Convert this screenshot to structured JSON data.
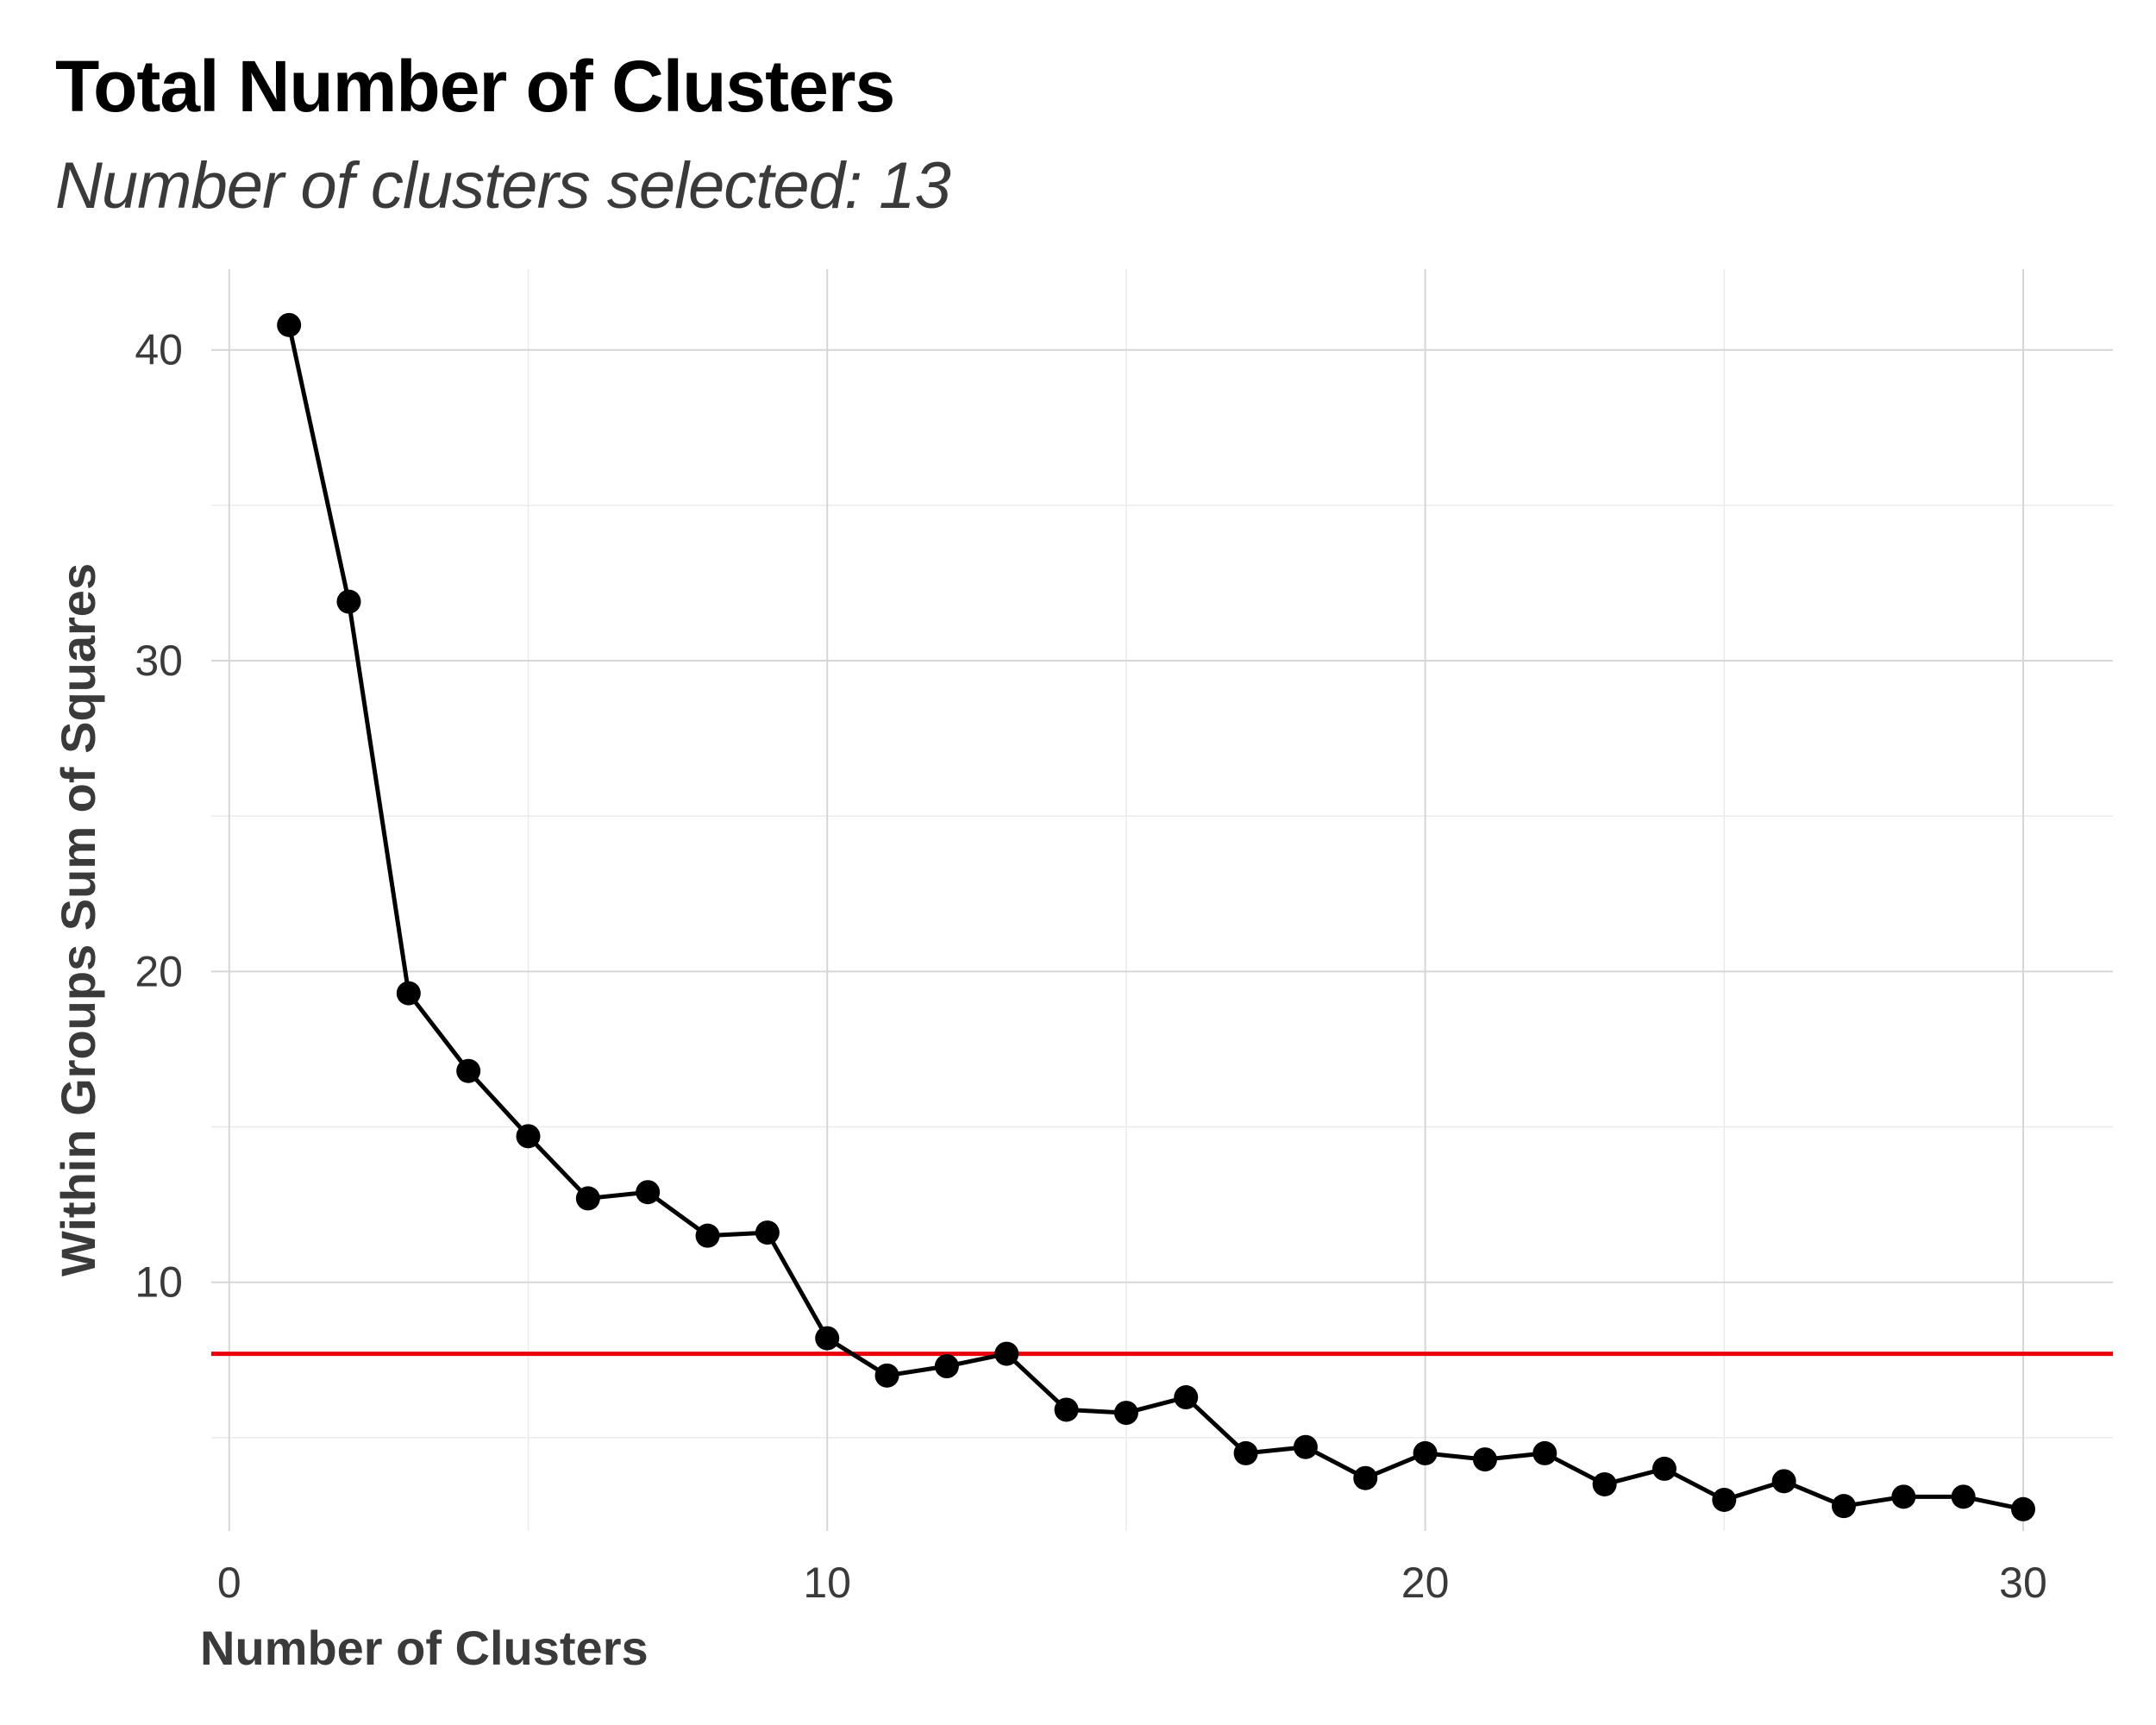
{
  "chart_data": {
    "type": "line",
    "title": "Total Number of Clusters",
    "subtitle": "Number of clusters selected: 13",
    "xlabel": "Number of Clusters",
    "ylabel": "Within Groups Sum of Squares",
    "xlim": [
      -0.3,
      31.5
    ],
    "ylim": [
      2,
      42.6
    ],
    "x_ticks": [
      0,
      10,
      20,
      30
    ],
    "y_ticks": [
      10,
      20,
      30,
      40
    ],
    "x_minor_ticks": [
      5,
      15,
      25
    ],
    "y_minor_ticks": [
      5,
      15,
      25,
      35
    ],
    "grid": true,
    "series": [
      {
        "color": "#000000",
        "x": [
          1,
          2,
          3,
          4,
          5,
          6,
          7,
          8,
          9,
          10,
          11,
          12,
          13,
          14,
          15,
          16,
          17,
          18,
          19,
          20,
          21,
          22,
          23,
          24,
          25,
          26,
          27,
          28,
          29,
          30
        ],
        "values": [
          40.8,
          31.9,
          19.3,
          16.8,
          14.7,
          12.7,
          12.9,
          11.5,
          11.6,
          8.2,
          7.0,
          7.3,
          7.7,
          5.9,
          5.8,
          6.3,
          4.5,
          4.7,
          3.7,
          4.5,
          4.3,
          4.5,
          3.5,
          4.0,
          3.0,
          3.6,
          2.8,
          3.1,
          3.1,
          2.7
        ]
      }
    ],
    "reference_line": {
      "orientation": "horizontal",
      "y": 7.7,
      "color": "#e8000b"
    }
  }
}
